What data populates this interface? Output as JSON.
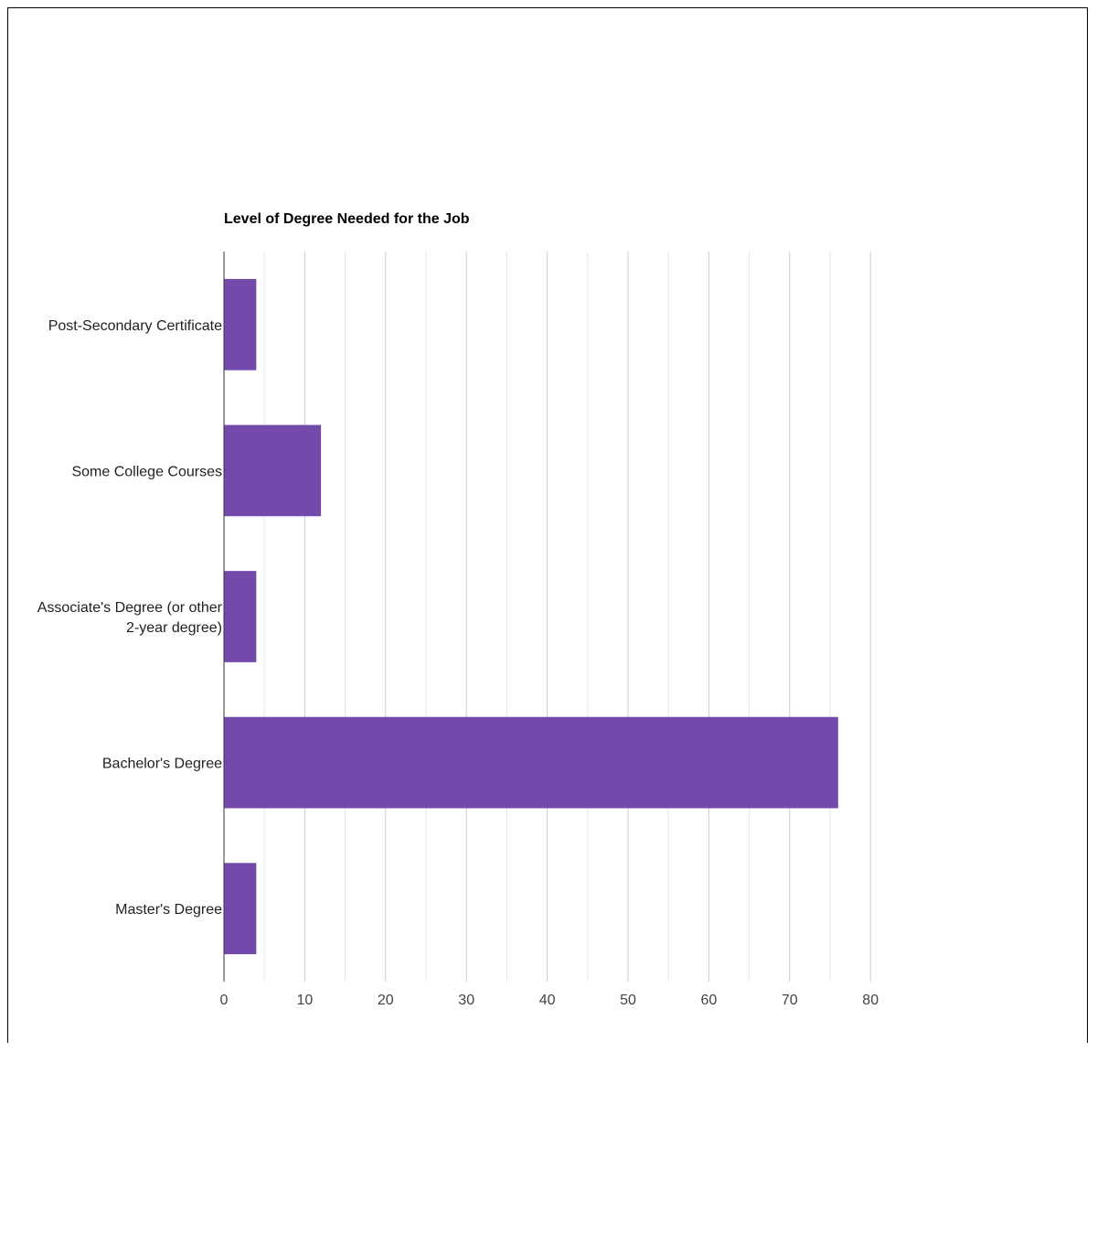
{
  "chart_data": {
    "type": "bar",
    "orientation": "horizontal",
    "title": "Level of Degree Needed for the Job",
    "categories": [
      [
        "Post-Secondary Certificate"
      ],
      [
        "Some College Courses"
      ],
      [
        "Associate's Degree (or other",
        "2-year degree)"
      ],
      [
        "Bachelor's Degree"
      ],
      [
        "Master's Degree"
      ]
    ],
    "values": [
      4,
      12,
      4,
      76,
      4
    ],
    "xlim": [
      0,
      80
    ],
    "xticks": [
      0,
      10,
      20,
      30,
      40,
      50,
      60,
      70,
      80
    ],
    "grid": true,
    "legend": "none",
    "colors": {
      "bar": "#7449ac",
      "grid_major": "#cccccc",
      "grid_minor": "#e6e6e6",
      "axis": "#333333",
      "label": "#222222",
      "tick_label": "#444444"
    }
  }
}
